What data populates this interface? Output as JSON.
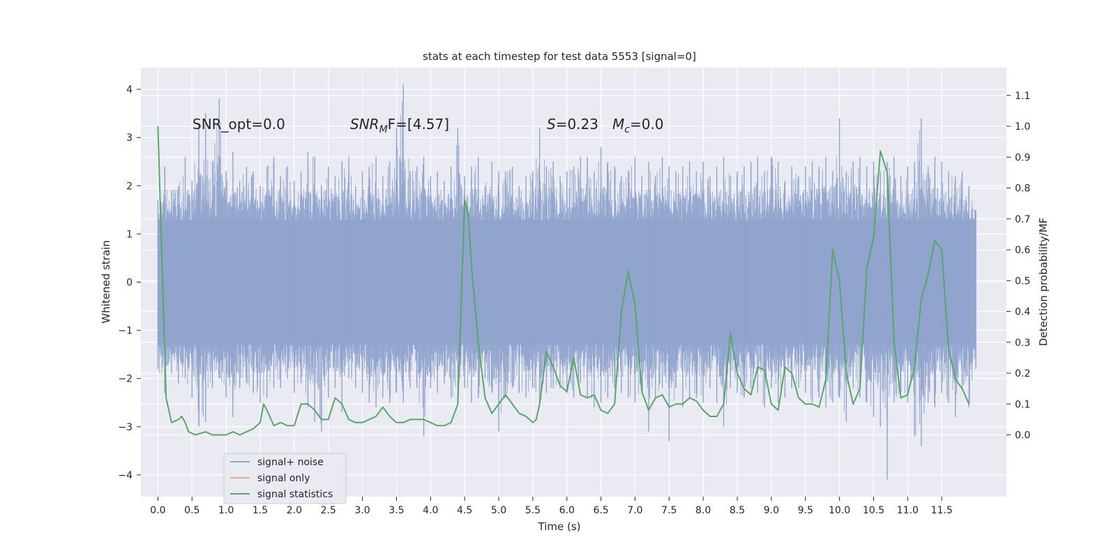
{
  "chart_data": {
    "type": "line",
    "title": "stats at each timestep for test data 5553 [signal=0]",
    "xlabel": "Time (s)",
    "ylabel": "Whitened strain",
    "y2label": "Detection probability/MF",
    "xlim": [
      -0.25,
      12.45
    ],
    "ylim": [
      -4.45,
      4.45
    ],
    "y2lim": [
      -0.2,
      1.19
    ],
    "x_ticks": [
      0.0,
      0.5,
      1.0,
      1.5,
      2.0,
      2.5,
      3.0,
      3.5,
      4.0,
      4.5,
      5.0,
      5.5,
      6.0,
      6.5,
      7.0,
      7.5,
      8.0,
      8.5,
      9.0,
      9.5,
      10.0,
      10.5,
      11.0,
      11.5
    ],
    "x_tick_labels": [
      "0.0",
      "0.5",
      "1.0",
      "1.5",
      "2.0",
      "2.5",
      "3.0",
      "3.5",
      "4.0",
      "4.5",
      "5.0",
      "5.5",
      "6.0",
      "6.5",
      "7.0",
      "7.5",
      "8.0",
      "8.5",
      "9.0",
      "9.5",
      "10.0",
      "10.5",
      "11.0",
      "11.5"
    ],
    "y_ticks": [
      -4,
      -3,
      -2,
      -1,
      0,
      1,
      2,
      3,
      4
    ],
    "y_tick_labels": [
      "−4",
      "−3",
      "−2",
      "−1",
      "0",
      "1",
      "2",
      "3",
      "4"
    ],
    "y2_ticks": [
      0.0,
      0.1,
      0.2,
      0.3,
      0.4,
      0.5,
      0.6,
      0.7,
      0.8,
      0.9,
      1.0,
      1.1
    ],
    "y2_tick_labels": [
      "0.0",
      "0.1",
      "0.2",
      "0.3",
      "0.4",
      "0.5",
      "0.6",
      "0.7",
      "0.8",
      "0.9",
      "1.0",
      "1.1"
    ],
    "grid": true,
    "legend_placement": "lower-left",
    "annotations": {
      "snr_opt": "SNR_opt=0.0",
      "snr_mf_main": "SNR",
      "snr_mf_sub": "M",
      "snr_mf_rest": "F=[4.57]",
      "s_symbol": "S",
      "s_value": "=0.23",
      "mc_symbol": "M",
      "mc_sub": "c",
      "mc_value": "=0.0"
    },
    "series": [
      {
        "name": "signal+ noise",
        "color": "#8fa3cc",
        "description_type": "dense noise, envelope sampled",
        "x_range": [
          0.0,
          12.0
        ],
        "envelope_x": [
          0.0,
          0.1,
          0.2,
          0.3,
          0.4,
          0.5,
          0.6,
          0.7,
          0.8,
          0.9,
          1.0,
          1.1,
          1.2,
          1.3,
          1.4,
          1.5,
          1.6,
          1.7,
          1.8,
          1.9,
          2.0,
          2.1,
          2.2,
          2.3,
          2.4,
          2.5,
          2.6,
          2.7,
          2.8,
          2.9,
          3.0,
          3.1,
          3.2,
          3.3,
          3.4,
          3.5,
          3.6,
          3.7,
          3.8,
          3.9,
          4.0,
          4.1,
          4.2,
          4.3,
          4.4,
          4.5,
          4.6,
          4.7,
          4.8,
          4.9,
          5.0,
          5.1,
          5.2,
          5.3,
          5.4,
          5.5,
          5.6,
          5.7,
          5.8,
          5.9,
          6.0,
          6.1,
          6.2,
          6.3,
          6.4,
          6.5,
          6.6,
          6.7,
          6.8,
          6.9,
          7.0,
          7.1,
          7.2,
          7.3,
          7.4,
          7.5,
          7.6,
          7.7,
          7.8,
          7.9,
          8.0,
          8.1,
          8.2,
          8.3,
          8.4,
          8.5,
          8.6,
          8.7,
          8.8,
          8.9,
          9.0,
          9.1,
          9.2,
          9.3,
          9.4,
          9.5,
          9.6,
          9.7,
          9.8,
          9.9,
          10.0,
          10.1,
          10.2,
          10.3,
          10.4,
          10.5,
          10.6,
          10.7,
          10.8,
          10.9,
          11.0,
          11.1,
          11.2,
          11.3,
          11.4,
          11.5,
          11.6,
          11.7,
          11.8,
          11.9,
          12.0
        ],
        "envelope_max": [
          1.7,
          2.4,
          1.9,
          2.0,
          2.6,
          2.1,
          3.3,
          3.5,
          2.5,
          3.8,
          2.3,
          2.7,
          2.1,
          2.4,
          2.3,
          2.0,
          2.4,
          2.6,
          2.2,
          2.4,
          2.1,
          2.3,
          2.7,
          2.6,
          2.0,
          2.4,
          2.2,
          2.5,
          2.6,
          2.0,
          2.3,
          2.4,
          2.6,
          2.2,
          2.5,
          3.2,
          4.1,
          2.3,
          2.4,
          2.6,
          2.2,
          2.3,
          2.1,
          2.4,
          3.2,
          2.2,
          2.4,
          2.6,
          2.0,
          2.5,
          2.3,
          2.3,
          2.4,
          2.0,
          2.2,
          2.3,
          3.2,
          2.4,
          2.5,
          2.2,
          2.3,
          2.4,
          2.6,
          2.6,
          2.3,
          2.8,
          2.5,
          2.4,
          2.2,
          2.3,
          2.6,
          2.2,
          2.5,
          2.2,
          2.6,
          2.4,
          2.3,
          2.4,
          2.5,
          2.3,
          2.5,
          2.2,
          2.4,
          2.6,
          2.2,
          2.3,
          2.4,
          2.5,
          2.6,
          2.3,
          2.6,
          2.5,
          2.1,
          2.4,
          2.2,
          2.4,
          2.5,
          2.4,
          2.6,
          2.3,
          3.4,
          2.3,
          2.5,
          2.6,
          2.4,
          2.5,
          2.3,
          2.5,
          2.6,
          2.2,
          2.4,
          2.5,
          3.4,
          2.4,
          2.6,
          2.5,
          2.3,
          2.2,
          2.3,
          2.0,
          1.5
        ],
        "envelope_min": [
          -1.8,
          -2.3,
          -1.9,
          -2.1,
          -2.0,
          -2.4,
          -3.0,
          -2.9,
          -2.2,
          -2.0,
          -2.4,
          -2.8,
          -2.2,
          -2.1,
          -2.3,
          -2.5,
          -2.4,
          -2.2,
          -2.2,
          -2.0,
          -2.3,
          -2.1,
          -2.6,
          -2.9,
          -3.1,
          -2.4,
          -2.2,
          -2.7,
          -2.0,
          -2.2,
          -2.3,
          -2.5,
          -2.6,
          -2.4,
          -2.5,
          -2.3,
          -2.5,
          -2.2,
          -2.2,
          -3.2,
          -2.2,
          -2.3,
          -2.1,
          -2.4,
          -2.5,
          -2.2,
          -2.5,
          -2.4,
          -2.0,
          -2.3,
          -3.1,
          -2.4,
          -2.2,
          -2.3,
          -2.4,
          -2.2,
          -2.5,
          -2.3,
          -2.2,
          -2.2,
          -2.3,
          -2.4,
          -2.1,
          -2.4,
          -2.6,
          -2.5,
          -2.4,
          -2.2,
          -2.3,
          -2.4,
          -2.5,
          -2.2,
          -3.1,
          -2.4,
          -2.2,
          -3.3,
          -2.2,
          -2.6,
          -2.4,
          -2.4,
          -2.5,
          -2.2,
          -2.5,
          -3.0,
          -2.2,
          -2.3,
          -2.4,
          -2.2,
          -2.3,
          -2.6,
          -2.2,
          -2.5,
          -2.4,
          -2.2,
          -2.2,
          -2.3,
          -2.5,
          -2.4,
          -2.6,
          -2.5,
          -2.4,
          -2.9,
          -2.2,
          -2.4,
          -2.5,
          -2.8,
          -3.0,
          -4.1,
          -2.5,
          -2.3,
          -2.5,
          -3.2,
          -3.4,
          -2.5,
          -2.6,
          -2.3,
          -2.5,
          -2.8,
          -2.2,
          -2.6,
          -1.8
        ]
      },
      {
        "name": "signal only",
        "color": "#e8a486",
        "x": [],
        "y": []
      },
      {
        "name": "signal statistics",
        "color": "#55a868",
        "axis": "right",
        "x": [
          0.0,
          0.12,
          0.2,
          0.3,
          0.35,
          0.4,
          0.45,
          0.55,
          0.7,
          0.8,
          0.9,
          1.0,
          1.1,
          1.2,
          1.3,
          1.4,
          1.5,
          1.55,
          1.6,
          1.7,
          1.8,
          1.9,
          2.0,
          2.1,
          2.2,
          2.3,
          2.4,
          2.5,
          2.6,
          2.7,
          2.8,
          2.9,
          3.0,
          3.1,
          3.2,
          3.3,
          3.4,
          3.5,
          3.6,
          3.7,
          3.8,
          3.9,
          4.0,
          4.1,
          4.2,
          4.3,
          4.4,
          4.5,
          4.55,
          4.6,
          4.7,
          4.8,
          4.9,
          5.0,
          5.1,
          5.2,
          5.3,
          5.4,
          5.5,
          5.55,
          5.6,
          5.7,
          5.8,
          5.9,
          6.0,
          6.1,
          6.2,
          6.3,
          6.4,
          6.5,
          6.6,
          6.7,
          6.8,
          6.9,
          7.0,
          7.1,
          7.2,
          7.3,
          7.4,
          7.5,
          7.6,
          7.7,
          7.8,
          7.9,
          8.0,
          8.1,
          8.2,
          8.3,
          8.4,
          8.5,
          8.6,
          8.7,
          8.8,
          8.9,
          9.0,
          9.1,
          9.2,
          9.3,
          9.4,
          9.5,
          9.6,
          9.7,
          9.8,
          9.9,
          10.0,
          10.1,
          10.2,
          10.3,
          10.4,
          10.5,
          10.6,
          10.7,
          10.8,
          10.9,
          11.0,
          11.1,
          11.2,
          11.3,
          11.4,
          11.5,
          11.6,
          11.7,
          11.8,
          11.9
        ],
        "y": [
          1.0,
          0.12,
          0.04,
          0.05,
          0.06,
          0.04,
          0.01,
          0.0,
          0.01,
          0.0,
          0.0,
          0.0,
          0.01,
          0.0,
          0.01,
          0.02,
          0.04,
          0.1,
          0.08,
          0.03,
          0.04,
          0.03,
          0.03,
          0.1,
          0.1,
          0.08,
          0.05,
          0.05,
          0.12,
          0.1,
          0.05,
          0.04,
          0.04,
          0.05,
          0.06,
          0.09,
          0.06,
          0.04,
          0.04,
          0.05,
          0.05,
          0.05,
          0.04,
          0.03,
          0.03,
          0.04,
          0.1,
          0.76,
          0.72,
          0.55,
          0.3,
          0.12,
          0.07,
          0.1,
          0.13,
          0.1,
          0.07,
          0.06,
          0.04,
          0.05,
          0.1,
          0.27,
          0.22,
          0.16,
          0.14,
          0.25,
          0.13,
          0.12,
          0.13,
          0.08,
          0.07,
          0.1,
          0.4,
          0.53,
          0.42,
          0.14,
          0.08,
          0.12,
          0.13,
          0.09,
          0.1,
          0.1,
          0.12,
          0.11,
          0.08,
          0.06,
          0.06,
          0.1,
          0.33,
          0.2,
          0.15,
          0.13,
          0.22,
          0.21,
          0.1,
          0.08,
          0.22,
          0.2,
          0.12,
          0.1,
          0.1,
          0.09,
          0.18,
          0.6,
          0.5,
          0.2,
          0.1,
          0.15,
          0.54,
          0.64,
          0.92,
          0.85,
          0.3,
          0.12,
          0.13,
          0.22,
          0.44,
          0.52,
          0.63,
          0.6,
          0.28,
          0.18,
          0.15,
          0.1
        ]
      }
    ]
  }
}
